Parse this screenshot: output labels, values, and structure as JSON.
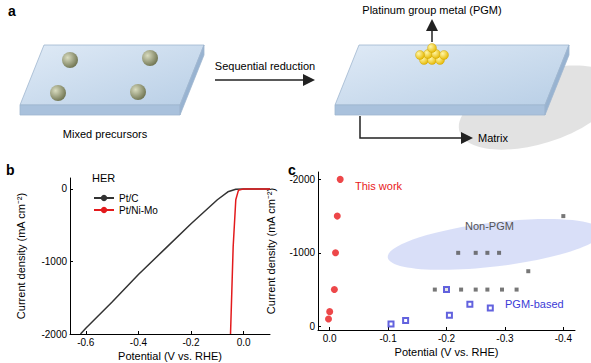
{
  "diagram": {
    "panel": "a",
    "arrow_label": "Sequential reduction",
    "left_label": "Mixed precursors",
    "top_label": "Platinum group metal (PGM)",
    "matrix_label": "Matrix"
  },
  "chart_data": [
    {
      "panel": "b",
      "type": "line",
      "annotations": [
        "HER"
      ],
      "x_label": "Potential (V vs. RHE)",
      "y_label": "Current density (mA cm⁻²)",
      "xlim": [
        -0.66,
        0.1
      ],
      "xticks": [
        -0.6,
        -0.4,
        -0.2,
        {
          "value": 0,
          "label": "0.0"
        }
      ],
      "ylim": [
        -2000,
        150
      ],
      "yticks": [
        -2000,
        -1000,
        0
      ],
      "grid": false,
      "legend": "top-left",
      "series": [
        {
          "name": "Pt/C",
          "color": "#333333",
          "line_style": "solid",
          "x": [
            0.1,
            0.0,
            -0.03,
            -0.06,
            -0.1,
            -0.2,
            -0.3,
            -0.4,
            -0.5,
            -0.6,
            -0.62
          ],
          "values": [
            0,
            0,
            -5,
            -40,
            -150,
            -480,
            -830,
            -1180,
            -1560,
            -1920,
            -2000
          ]
        },
        {
          "name": "Pt/Ni-Mo",
          "color": "#e31a1c",
          "line_style": "solid",
          "x": [
            0.1,
            0.0,
            -0.02,
            -0.03,
            -0.04,
            -0.045,
            -0.05
          ],
          "values": [
            0,
            0,
            -20,
            -150,
            -800,
            -1400,
            -2000
          ]
        }
      ]
    },
    {
      "panel": "c",
      "type": "scatter",
      "x_label": "Potential (V vs. RHE)",
      "y_label": "Current density (mA cm⁻²)",
      "xlim": [
        0.02,
        -0.42
      ],
      "xticks": [
        {
          "value": 0,
          "label": "0.0"
        },
        -0.1,
        -0.2,
        -0.3,
        -0.4
      ],
      "ylim": [
        50,
        -2100
      ],
      "yticks": [
        0,
        -1000,
        -2000
      ],
      "grid": false,
      "series": [
        {
          "name": "This work",
          "color": "#e8191b",
          "marker": "circle",
          "x": [
            0.002,
            0.0,
            -0.008,
            -0.01,
            -0.013,
            -0.018
          ],
          "values": [
            -100,
            -200,
            -500,
            -1000,
            -1500,
            -2000
          ]
        },
        {
          "name": "Non-PGM",
          "color": "#555555",
          "marker": "square",
          "x": [
            -0.22,
            -0.25,
            -0.27,
            -0.29,
            -0.18,
            -0.2,
            -0.225,
            -0.25,
            -0.27,
            -0.295,
            -0.32,
            -0.34,
            -0.4
          ],
          "values": [
            -1000,
            -1000,
            -1000,
            -1000,
            -500,
            -500,
            -500,
            -500,
            -500,
            -500,
            -500,
            -750,
            -1500
          ]
        },
        {
          "name": "PGM-based",
          "color": "#3b3bd6",
          "marker": "open_square",
          "x": [
            -0.105,
            -0.13,
            -0.2,
            -0.205,
            -0.24,
            -0.275
          ],
          "values": [
            -30,
            -80,
            -500,
            -150,
            -300,
            -250
          ]
        }
      ]
    }
  ]
}
